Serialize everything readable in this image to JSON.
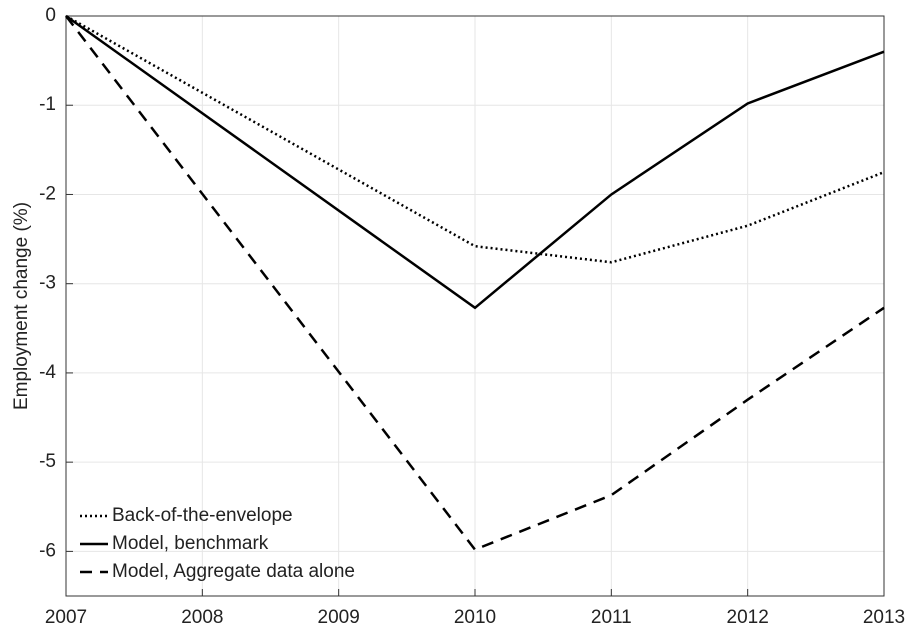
{
  "chart_data": {
    "type": "line",
    "y_label": "Employment change (%)",
    "x": [
      2007,
      2010,
      2011,
      2012,
      2013
    ],
    "series": [
      {
        "name": "Back-of-the-envelope",
        "color": "#000000",
        "dash": "dotted",
        "values": [
          0,
          -2.58,
          -2.76,
          -2.35,
          -1.75
        ]
      },
      {
        "name": "Model, benchmark",
        "color": "#000000",
        "dash": "solid",
        "values": [
          0,
          -3.27,
          -2.0,
          -0.98,
          -0.4
        ]
      },
      {
        "name": "Model, Aggregate data alone",
        "color": "#000000",
        "dash": "dashed",
        "values": [
          0,
          -5.98,
          -5.37,
          -4.3,
          -3.27
        ]
      }
    ],
    "xlim": [
      2007,
      2013
    ],
    "xticks": [
      2007,
      2008,
      2009,
      2010,
      2011,
      2012,
      2013
    ],
    "ylim": [
      -6.5,
      0
    ],
    "yticks": [
      0,
      -1,
      -2,
      -3,
      -4,
      -5,
      -6
    ],
    "grid": true,
    "legend": "lower-left"
  }
}
